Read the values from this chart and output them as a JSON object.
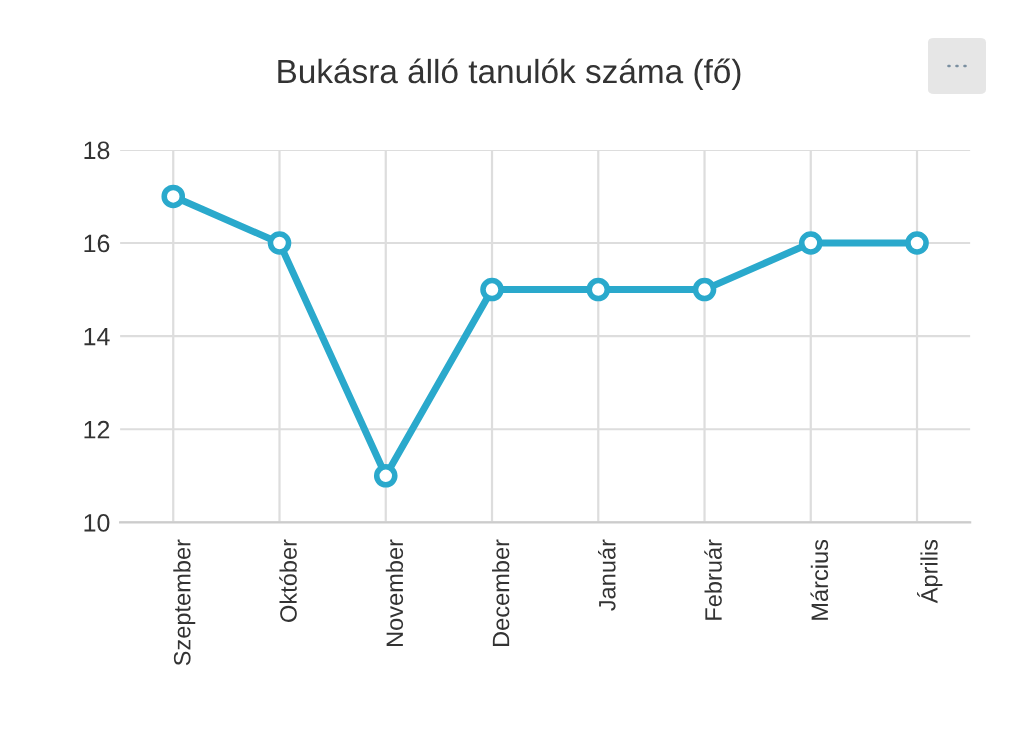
{
  "chart_data": {
    "type": "line",
    "title": "Bukásra álló tanulók száma (fő)",
    "categories": [
      "Szeptember",
      "Október",
      "November",
      "December",
      "Január",
      "Február",
      "Március",
      "Április"
    ],
    "series": [
      {
        "color": "#2aa9cc",
        "values": [
          17,
          16,
          11,
          15,
          15,
          15,
          16,
          16
        ]
      }
    ],
    "ylim": [
      10,
      18
    ],
    "yticks": [
      10,
      12,
      14,
      16,
      18
    ],
    "grid": true,
    "marker": "circle",
    "line_style": "solid",
    "legend": false
  }
}
